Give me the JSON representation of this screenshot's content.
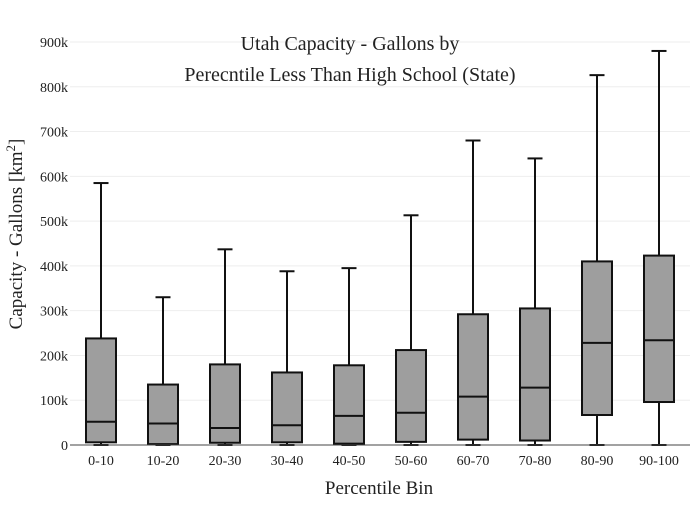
{
  "chart_data": {
    "type": "box",
    "title_lines": [
      "Utah Capacity - Gallons by",
      "Perecntile Less Than High School (State)"
    ],
    "xlabel": "Percentile Bin",
    "ylabel": "Capacity - Gallons",
    "ylabel_unit": "[km",
    "ylabel_unit_sup": "2",
    "ylabel_unit_close": "]",
    "ylim": [
      0,
      900000
    ],
    "yticks": [
      {
        "value": 0,
        "label": "0"
      },
      {
        "value": 100000,
        "label": "100k"
      },
      {
        "value": 200000,
        "label": "200k"
      },
      {
        "value": 300000,
        "label": "300k"
      },
      {
        "value": 400000,
        "label": "400k"
      },
      {
        "value": 500000,
        "label": "500k"
      },
      {
        "value": 600000,
        "label": "600k"
      },
      {
        "value": 700000,
        "label": "700k"
      },
      {
        "value": 800000,
        "label": "800k"
      },
      {
        "value": 900000,
        "label": "900k"
      }
    ],
    "grid": true,
    "box_color": "#9e9e9e",
    "categories": [
      "0-10",
      "10-20",
      "20-30",
      "30-40",
      "40-50",
      "50-60",
      "60-70",
      "70-80",
      "80-90",
      "90-100"
    ],
    "series": [
      {
        "values": [
          {
            "min": 0,
            "q1": 6000,
            "median": 52000,
            "q3": 238000,
            "max": 585000
          },
          {
            "min": 0,
            "q1": 2000,
            "median": 48000,
            "q3": 135000,
            "max": 330000
          },
          {
            "min": 0,
            "q1": 5000,
            "median": 38000,
            "q3": 180000,
            "max": 437000
          },
          {
            "min": 0,
            "q1": 6000,
            "median": 44000,
            "q3": 162000,
            "max": 388000
          },
          {
            "min": 0,
            "q1": 3000,
            "median": 65000,
            "q3": 178000,
            "max": 395000
          },
          {
            "min": 0,
            "q1": 7000,
            "median": 72000,
            "q3": 212000,
            "max": 513000
          },
          {
            "min": 0,
            "q1": 12000,
            "median": 108000,
            "q3": 292000,
            "max": 680000
          },
          {
            "min": 0,
            "q1": 10000,
            "median": 128000,
            "q3": 305000,
            "max": 640000
          },
          {
            "min": 0,
            "q1": 67000,
            "median": 228000,
            "q3": 410000,
            "max": 826000
          },
          {
            "min": 0,
            "q1": 96000,
            "median": 234000,
            "q3": 423000,
            "max": 880000
          }
        ]
      }
    ]
  }
}
